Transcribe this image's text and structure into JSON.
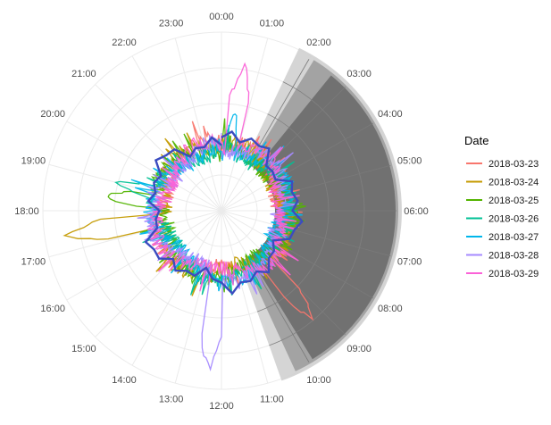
{
  "chart_data": {
    "type": "polar-line",
    "title": "",
    "angular_axis": {
      "labels": [
        "00:00",
        "01:00",
        "02:00",
        "03:00",
        "04:00",
        "05:00",
        "06:00",
        "07:00",
        "08:00",
        "09:00",
        "10:00",
        "11:00",
        "12:00",
        "13:00",
        "14:00",
        "15:00",
        "16:00",
        "17:00",
        "18:00",
        "19:00",
        "20:00",
        "21:00",
        "22:00",
        "23:00"
      ],
      "direction": "clockwise",
      "start": "top"
    },
    "radial_grid": "on",
    "legend": {
      "title": "Date",
      "placement": "right"
    },
    "series": [
      {
        "name": "2018-03-23",
        "color": "#F8766D",
        "spike": {
          "hour": 9.3,
          "value": 1.55
        }
      },
      {
        "name": "2018-03-24",
        "color": "#C49A00",
        "spike": {
          "hour": 17.4,
          "value": 1.7
        }
      },
      {
        "name": "2018-03-25",
        "color": "#53B400",
        "spike": {
          "hour": 18.5,
          "value": 1.3
        }
      },
      {
        "name": "2018-03-26",
        "color": "#00C094",
        "spike": {
          "hour": 19.0,
          "value": 1.2
        }
      },
      {
        "name": "2018-03-27",
        "color": "#00B6EB",
        "spike": {
          "hour": 0.5,
          "value": 1.1
        }
      },
      {
        "name": "2018-03-28",
        "color": "#A58AFF",
        "spike": {
          "hour": 12.3,
          "value": 1.75
        }
      },
      {
        "name": "2018-03-29",
        "color": "#FB61D7",
        "spike": {
          "hour": 0.6,
          "value": 1.6
        }
      }
    ],
    "mean_line": {
      "color": "#3B4CC0",
      "description": "hourly average"
    },
    "shaded_band": {
      "from_hour": 1.7,
      "to_hour": 10.7,
      "color": "#666666",
      "note": "night period (dark band) with lighter edges"
    }
  }
}
